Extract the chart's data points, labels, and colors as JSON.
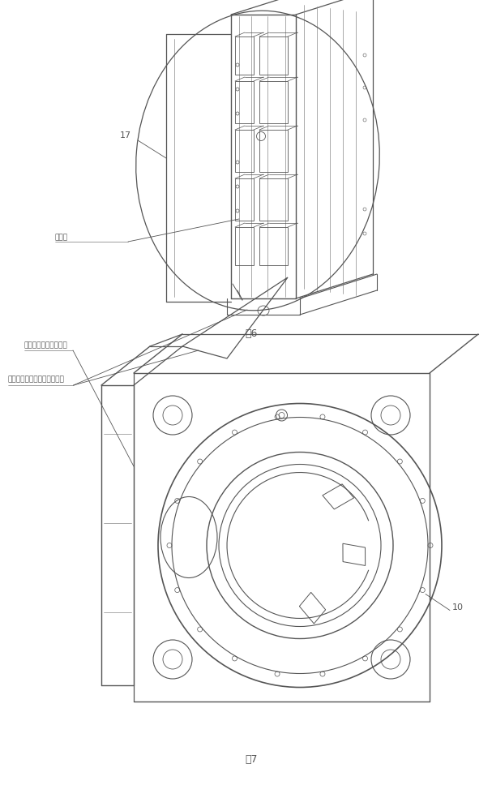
{
  "bg_color": "#ffffff",
  "line_color": "#555555",
  "line_color_light": "#888888",
  "fig6_label": "图6",
  "fig7_label": "图7",
  "label_17": "17",
  "label_guide_slot": "导向槽",
  "label_face": "此面为与卡具体结合面",
  "label_boss": "此凸台与卡具体的导向槽配合",
  "label_10": "10",
  "font_size_label": 6.5,
  "font_size_fig": 9,
  "fig_width": 6.07,
  "fig_height": 10.0,
  "dpi": 100
}
